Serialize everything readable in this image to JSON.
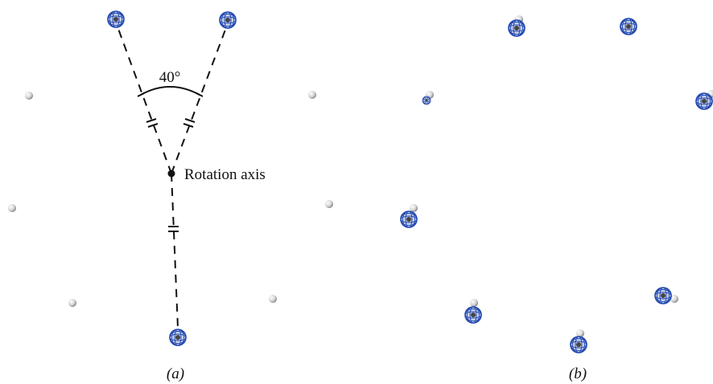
{
  "panels": [
    {
      "label": "(a)",
      "angle_label": "40°",
      "axis_label": "Rotation axis"
    },
    {
      "label": "(b)"
    }
  ]
}
